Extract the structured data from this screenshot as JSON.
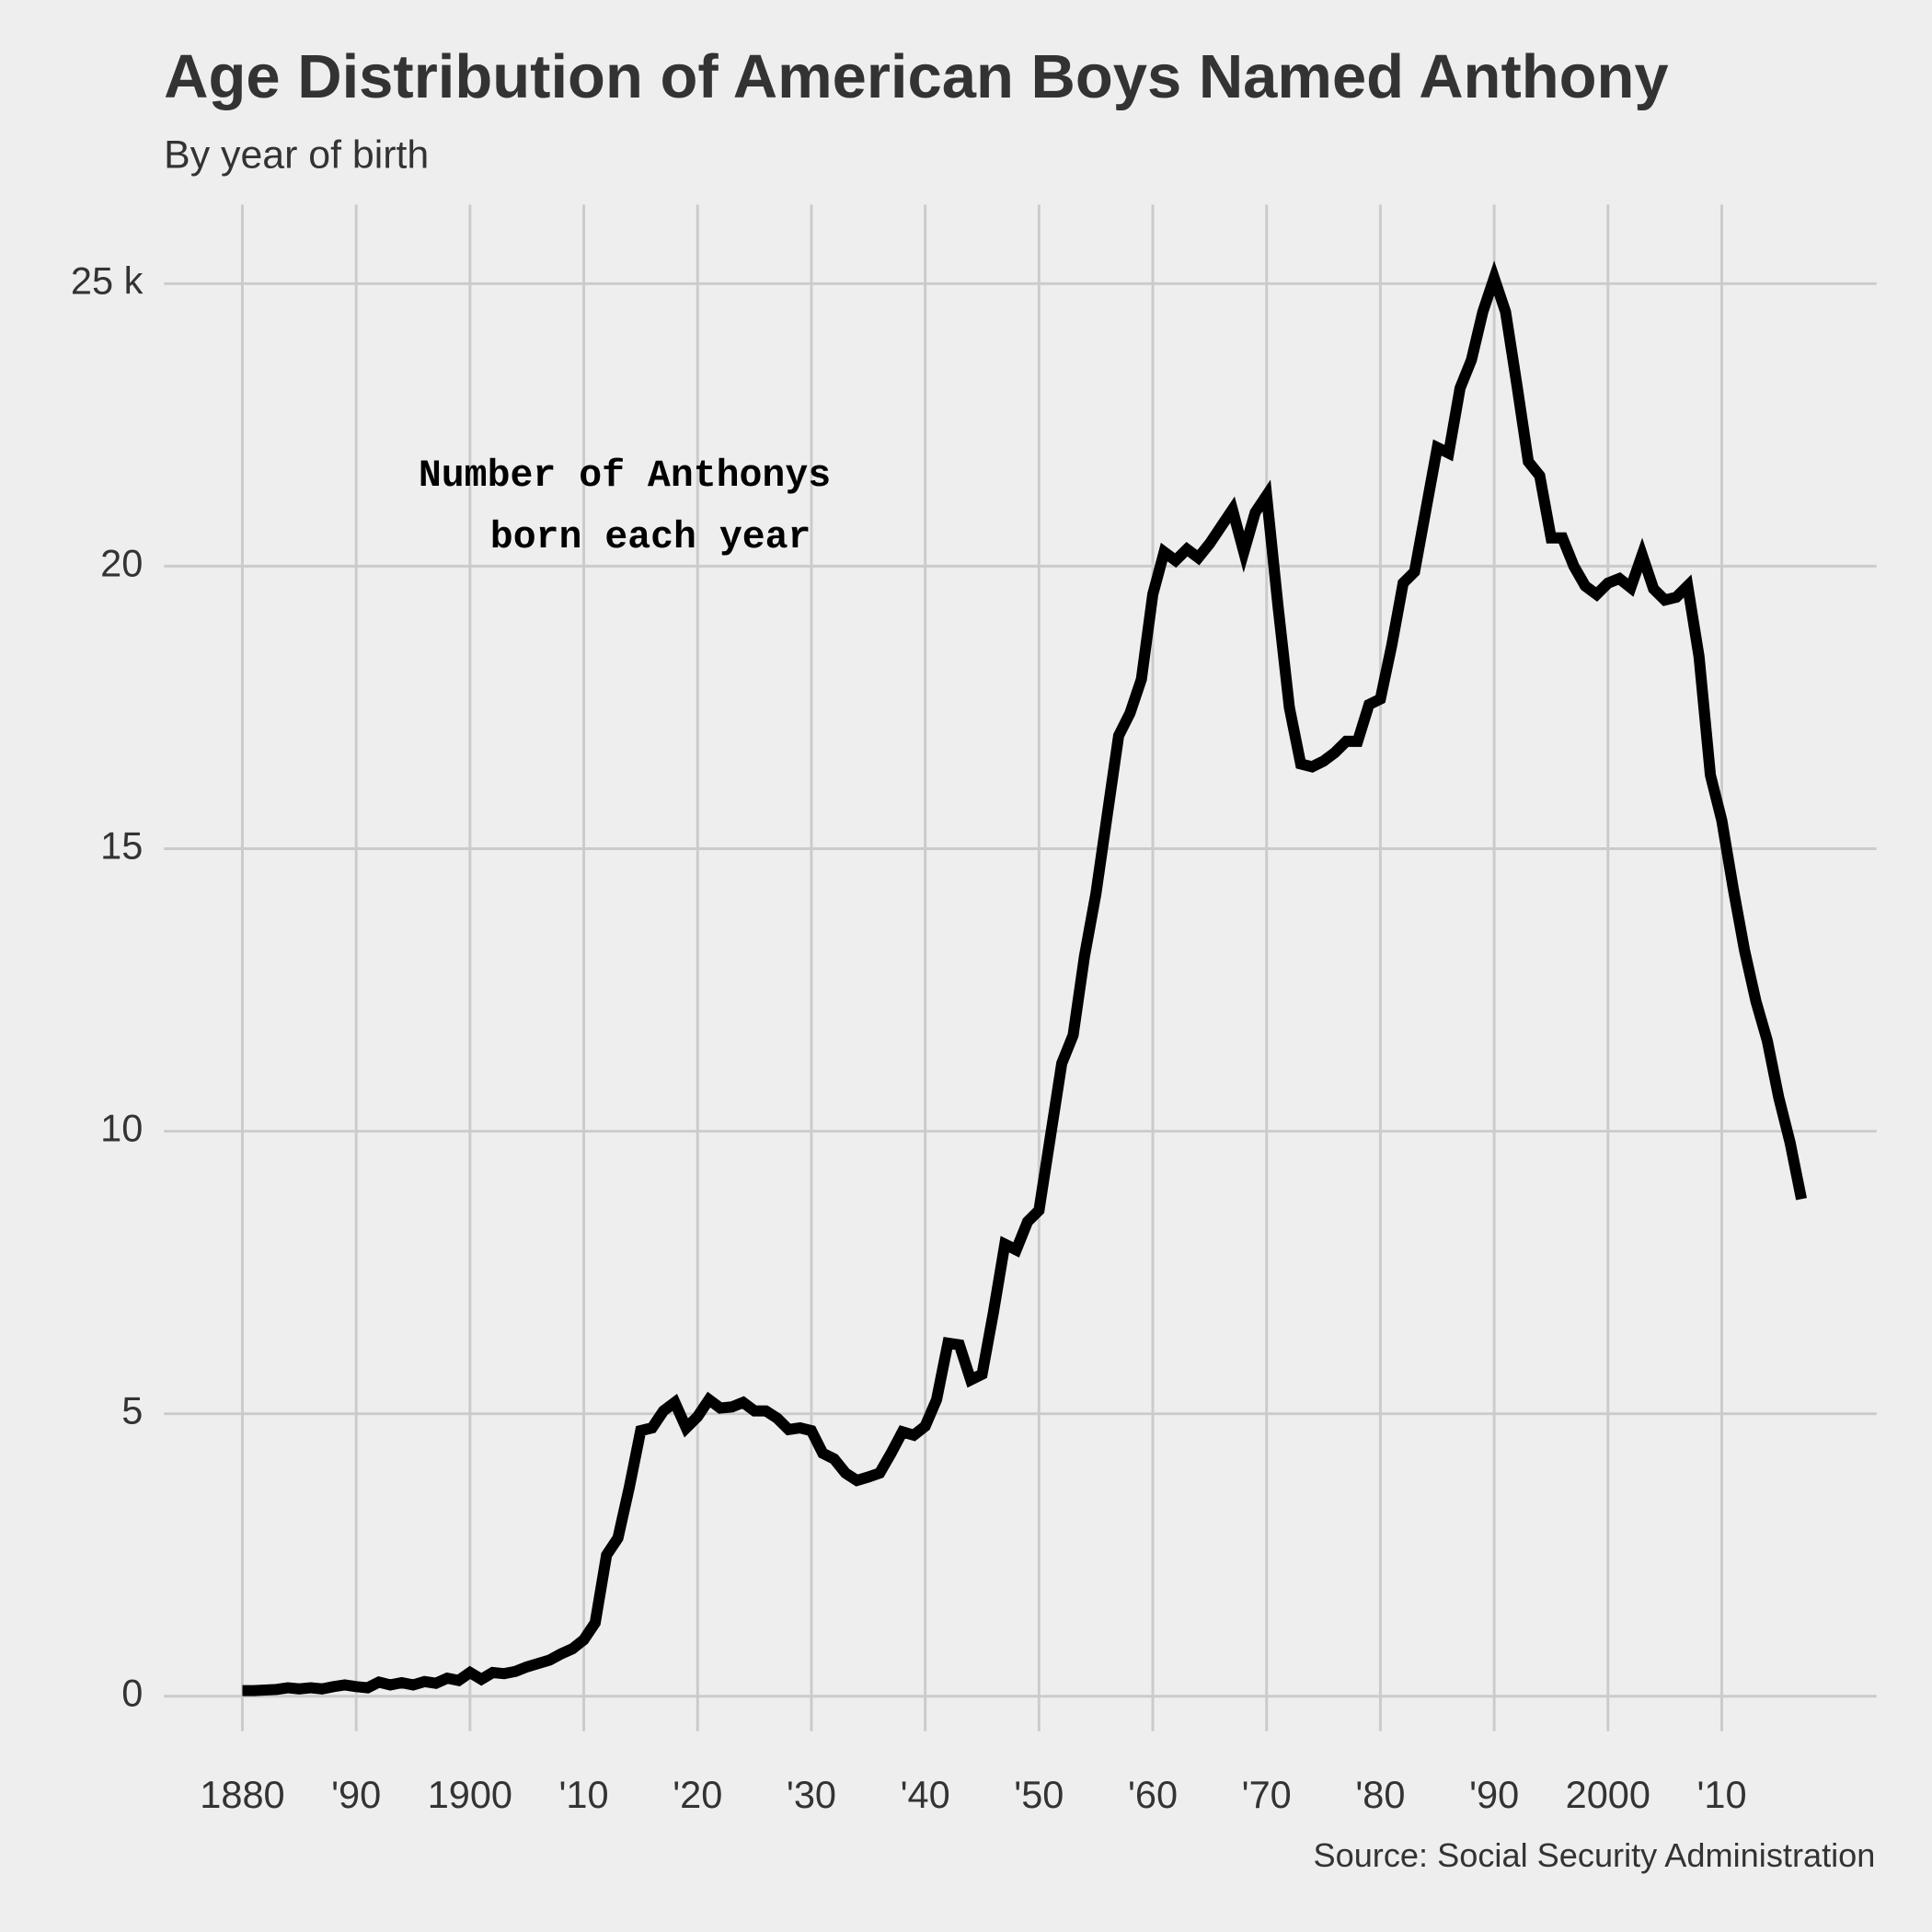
{
  "chart_data": {
    "type": "line",
    "title": "Age Distribution of American Boys Named Anthony",
    "subtitle": "By year of birth",
    "source": "Source: Social Security Administration",
    "annotation": [
      "Number of Anthonys",
      "born each year"
    ],
    "x": [
      1880,
      1881,
      1882,
      1883,
      1884,
      1885,
      1886,
      1887,
      1888,
      1889,
      1890,
      1891,
      1892,
      1893,
      1894,
      1895,
      1896,
      1897,
      1898,
      1899,
      1900,
      1901,
      1902,
      1903,
      1904,
      1905,
      1906,
      1907,
      1908,
      1909,
      1910,
      1911,
      1912,
      1913,
      1914,
      1915,
      1916,
      1917,
      1918,
      1919,
      1920,
      1921,
      1922,
      1923,
      1924,
      1925,
      1926,
      1927,
      1928,
      1929,
      1930,
      1931,
      1932,
      1933,
      1934,
      1935,
      1936,
      1937,
      1938,
      1939,
      1940,
      1941,
      1942,
      1943,
      1944,
      1945,
      1946,
      1947,
      1948,
      1949,
      1950,
      1951,
      1952,
      1953,
      1954,
      1955,
      1956,
      1957,
      1958,
      1959,
      1960,
      1961,
      1962,
      1963,
      1964,
      1965,
      1966,
      1967,
      1968,
      1969,
      1970,
      1971,
      1972,
      1973,
      1974,
      1975,
      1976,
      1977,
      1978,
      1979,
      1980,
      1981,
      1982,
      1983,
      1984,
      1985,
      1986,
      1987,
      1988,
      1989,
      1990,
      1991,
      1992,
      1993,
      1994,
      1995,
      1996,
      1997,
      1998,
      1999,
      2000,
      2001,
      2002,
      2003,
      2004,
      2005,
      2006,
      2007,
      2008,
      2009,
      2010,
      2011,
      2012,
      2013,
      2014,
      2015,
      2016,
      2017
    ],
    "series": [
      {
        "name": "Anthony",
        "color": "#000000",
        "values": [
          0.1,
          0.1,
          0.11,
          0.12,
          0.15,
          0.13,
          0.15,
          0.13,
          0.17,
          0.2,
          0.17,
          0.15,
          0.25,
          0.2,
          0.24,
          0.2,
          0.26,
          0.23,
          0.32,
          0.28,
          0.42,
          0.3,
          0.42,
          0.4,
          0.44,
          0.52,
          0.58,
          0.64,
          0.75,
          0.84,
          1.0,
          1.3,
          2.5,
          2.8,
          3.7,
          4.7,
          4.75,
          5.05,
          5.2,
          4.75,
          4.95,
          5.25,
          5.1,
          5.12,
          5.2,
          5.05,
          5.05,
          4.92,
          4.72,
          4.75,
          4.7,
          4.3,
          4.2,
          3.95,
          3.82,
          3.88,
          3.95,
          4.3,
          4.68,
          4.62,
          4.78,
          5.25,
          6.25,
          6.22,
          5.6,
          5.7,
          6.8,
          8.0,
          7.9,
          8.4,
          8.6,
          9.9,
          11.2,
          11.7,
          13.1,
          14.2,
          15.6,
          17.0,
          17.4,
          18.0,
          19.5,
          20.25,
          20.1,
          20.3,
          20.15,
          20.4,
          20.7,
          21.0,
          20.25,
          20.95,
          21.25,
          19.3,
          17.5,
          16.5,
          16.45,
          16.55,
          16.7,
          16.9,
          16.9,
          17.55,
          17.65,
          18.6,
          19.7,
          19.9,
          21.0,
          22.1,
          22.0,
          23.15,
          23.65,
          24.5,
          25.1,
          24.5,
          23.2,
          21.85,
          21.6,
          20.5,
          20.5,
          20.0,
          19.65,
          19.5,
          19.7,
          19.78,
          19.62,
          20.2,
          19.6,
          19.4,
          19.45,
          19.65,
          18.4,
          16.3,
          15.5,
          14.3,
          13.2,
          12.3,
          11.6,
          10.6,
          9.8,
          8.8
        ]
      }
    ],
    "xlim": [
      1873.1,
      2023.6
    ],
    "ylim": [
      -1.25,
      26.4
    ],
    "xticks": [
      1880,
      {
        "value": 1890,
        "label": "'90"
      },
      1900,
      {
        "value": 1910,
        "label": "'10"
      },
      {
        "value": 1920,
        "label": "'20"
      },
      {
        "value": 1930,
        "label": "'30"
      },
      {
        "value": 1940,
        "label": "'40"
      },
      {
        "value": 1950,
        "label": "'50"
      },
      {
        "value": 1960,
        "label": "'60"
      },
      {
        "value": 1970,
        "label": "'70"
      },
      {
        "value": 1980,
        "label": "'80"
      },
      {
        "value": 1990,
        "label": "'90"
      },
      2000,
      {
        "value": 2010,
        "label": "'10"
      }
    ],
    "yticks": [
      0,
      5,
      10,
      15,
      20,
      {
        "value": 25,
        "label": "25 k"
      }
    ],
    "grid": true
  }
}
